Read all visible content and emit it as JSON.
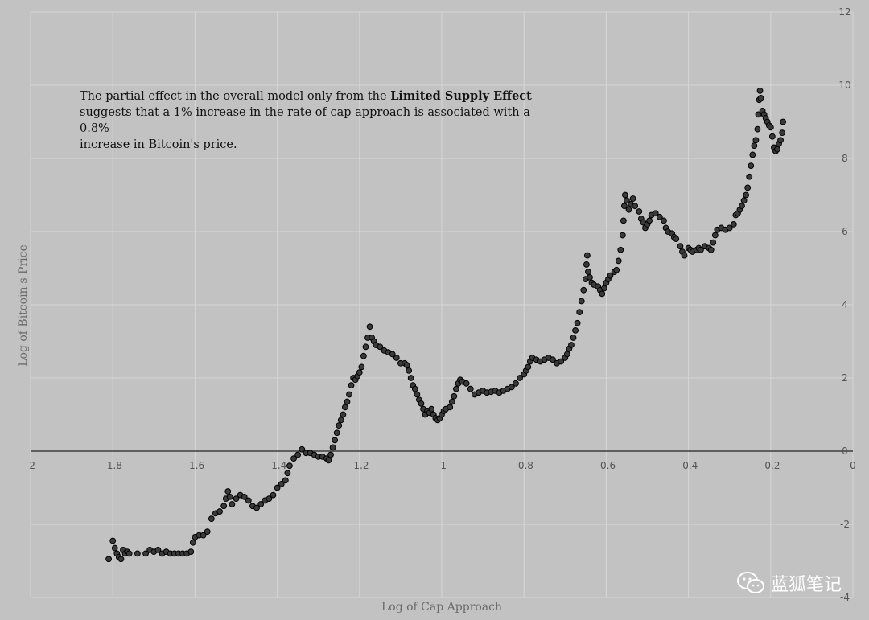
{
  "chart_data": {
    "type": "scatter",
    "title": "",
    "xlabel": "Log of Cap Approach",
    "ylabel": "Log  of  Bitcoin's Price",
    "xlim": [
      -2,
      0
    ],
    "ylim": [
      -4,
      12
    ],
    "x_ticks": [
      -2,
      -1.8,
      -1.6,
      -1.4,
      -1.2,
      -1,
      -0.8,
      -0.6,
      -0.4,
      -0.2,
      0
    ],
    "x_tick_labels": [
      "-2",
      "-1.8",
      "-1.6",
      "-1.4",
      "-1.2",
      "-1",
      "-0.8",
      "-0.6",
      "-0.4",
      "-0.2",
      "0"
    ],
    "y_ticks": [
      -4,
      -2,
      0,
      2,
      4,
      6,
      8,
      10,
      12
    ],
    "y_tick_labels": [
      "-4",
      "-2",
      "0",
      "2",
      "4",
      "6",
      "8",
      "10",
      "12"
    ],
    "grid": true,
    "marker_color": "#3a3a3a",
    "marker_edge": "#000000",
    "points": [
      [
        -1.81,
        -2.95
      ],
      [
        -1.8,
        -2.45
      ],
      [
        -1.795,
        -2.65
      ],
      [
        -1.79,
        -2.8
      ],
      [
        -1.785,
        -2.9
      ],
      [
        -1.78,
        -2.95
      ],
      [
        -1.775,
        -2.7
      ],
      [
        -1.77,
        -2.8
      ],
      [
        -1.765,
        -2.75
      ],
      [
        -1.76,
        -2.8
      ],
      [
        -1.74,
        -2.8
      ],
      [
        -1.72,
        -2.8
      ],
      [
        -1.71,
        -2.7
      ],
      [
        -1.7,
        -2.75
      ],
      [
        -1.69,
        -2.7
      ],
      [
        -1.68,
        -2.8
      ],
      [
        -1.67,
        -2.75
      ],
      [
        -1.66,
        -2.8
      ],
      [
        -1.65,
        -2.8
      ],
      [
        -1.64,
        -2.8
      ],
      [
        -1.63,
        -2.8
      ],
      [
        -1.62,
        -2.8
      ],
      [
        -1.61,
        -2.75
      ],
      [
        -1.605,
        -2.5
      ],
      [
        -1.6,
        -2.35
      ],
      [
        -1.59,
        -2.3
      ],
      [
        -1.58,
        -2.3
      ],
      [
        -1.57,
        -2.2
      ],
      [
        -1.56,
        -1.85
      ],
      [
        -1.55,
        -1.7
      ],
      [
        -1.54,
        -1.65
      ],
      [
        -1.53,
        -1.5
      ],
      [
        -1.525,
        -1.3
      ],
      [
        -1.52,
        -1.1
      ],
      [
        -1.515,
        -1.25
      ],
      [
        -1.51,
        -1.45
      ],
      [
        -1.5,
        -1.3
      ],
      [
        -1.49,
        -1.2
      ],
      [
        -1.48,
        -1.25
      ],
      [
        -1.47,
        -1.35
      ],
      [
        -1.46,
        -1.5
      ],
      [
        -1.45,
        -1.55
      ],
      [
        -1.44,
        -1.45
      ],
      [
        -1.43,
        -1.35
      ],
      [
        -1.42,
        -1.3
      ],
      [
        -1.41,
        -1.2
      ],
      [
        -1.4,
        -1.0
      ],
      [
        -1.39,
        -0.9
      ],
      [
        -1.38,
        -0.8
      ],
      [
        -1.375,
        -0.6
      ],
      [
        -1.37,
        -0.4
      ],
      [
        -1.36,
        -0.2
      ],
      [
        -1.35,
        -0.1
      ],
      [
        -1.34,
        0.05
      ],
      [
        -1.33,
        -0.05
      ],
      [
        -1.32,
        -0.05
      ],
      [
        -1.31,
        -0.1
      ],
      [
        -1.3,
        -0.15
      ],
      [
        -1.29,
        -0.15
      ],
      [
        -1.28,
        -0.2
      ],
      [
        -1.275,
        -0.25
      ],
      [
        -1.27,
        -0.1
      ],
      [
        -1.265,
        0.1
      ],
      [
        -1.26,
        0.3
      ],
      [
        -1.255,
        0.5
      ],
      [
        -1.25,
        0.7
      ],
      [
        -1.245,
        0.85
      ],
      [
        -1.24,
        1.0
      ],
      [
        -1.235,
        1.2
      ],
      [
        -1.23,
        1.35
      ],
      [
        -1.225,
        1.55
      ],
      [
        -1.22,
        1.8
      ],
      [
        -1.215,
        2.0
      ],
      [
        -1.21,
        1.95
      ],
      [
        -1.205,
        2.05
      ],
      [
        -1.2,
        2.15
      ],
      [
        -1.195,
        2.3
      ],
      [
        -1.19,
        2.6
      ],
      [
        -1.185,
        2.85
      ],
      [
        -1.18,
        3.1
      ],
      [
        -1.175,
        3.4
      ],
      [
        -1.17,
        3.1
      ],
      [
        -1.165,
        3.0
      ],
      [
        -1.16,
        2.9
      ],
      [
        -1.15,
        2.85
      ],
      [
        -1.14,
        2.75
      ],
      [
        -1.13,
        2.7
      ],
      [
        -1.12,
        2.65
      ],
      [
        -1.11,
        2.55
      ],
      [
        -1.1,
        2.4
      ],
      [
        -1.09,
        2.4
      ],
      [
        -1.085,
        2.35
      ],
      [
        -1.08,
        2.2
      ],
      [
        -1.075,
        2.0
      ],
      [
        -1.07,
        1.8
      ],
      [
        -1.065,
        1.7
      ],
      [
        -1.06,
        1.55
      ],
      [
        -1.055,
        1.4
      ],
      [
        -1.05,
        1.3
      ],
      [
        -1.045,
        1.15
      ],
      [
        -1.04,
        1.0
      ],
      [
        -1.035,
        1.1
      ],
      [
        -1.03,
        1.05
      ],
      [
        -1.025,
        1.15
      ],
      [
        -1.02,
        1.0
      ],
      [
        -1.015,
        0.9
      ],
      [
        -1.01,
        0.85
      ],
      [
        -1.005,
        0.9
      ],
      [
        -1.0,
        1.0
      ],
      [
        -0.995,
        1.1
      ],
      [
        -0.99,
        1.15
      ],
      [
        -0.98,
        1.2
      ],
      [
        -0.975,
        1.35
      ],
      [
        -0.97,
        1.5
      ],
      [
        -0.965,
        1.7
      ],
      [
        -0.96,
        1.85
      ],
      [
        -0.955,
        1.95
      ],
      [
        -0.95,
        1.9
      ],
      [
        -0.94,
        1.85
      ],
      [
        -0.93,
        1.7
      ],
      [
        -0.92,
        1.55
      ],
      [
        -0.91,
        1.6
      ],
      [
        -0.9,
        1.65
      ],
      [
        -0.89,
        1.6
      ],
      [
        -0.88,
        1.62
      ],
      [
        -0.87,
        1.65
      ],
      [
        -0.86,
        1.6
      ],
      [
        -0.85,
        1.65
      ],
      [
        -0.84,
        1.7
      ],
      [
        -0.83,
        1.75
      ],
      [
        -0.82,
        1.85
      ],
      [
        -0.81,
        2.0
      ],
      [
        -0.8,
        2.1
      ],
      [
        -0.795,
        2.2
      ],
      [
        -0.79,
        2.3
      ],
      [
        -0.785,
        2.45
      ],
      [
        -0.78,
        2.55
      ],
      [
        -0.77,
        2.5
      ],
      [
        -0.76,
        2.45
      ],
      [
        -0.75,
        2.5
      ],
      [
        -0.74,
        2.55
      ],
      [
        -0.73,
        2.5
      ],
      [
        -0.72,
        2.4
      ],
      [
        -0.71,
        2.45
      ],
      [
        -0.7,
        2.55
      ],
      [
        -0.695,
        2.65
      ],
      [
        -0.69,
        2.8
      ],
      [
        -0.685,
        2.9
      ],
      [
        -0.68,
        3.1
      ],
      [
        -0.675,
        3.3
      ],
      [
        -0.67,
        3.5
      ],
      [
        -0.665,
        3.8
      ],
      [
        -0.66,
        4.1
      ],
      [
        -0.655,
        4.4
      ],
      [
        -0.65,
        4.7
      ],
      [
        -0.648,
        5.1
      ],
      [
        -0.646,
        5.35
      ],
      [
        -0.644,
        4.9
      ],
      [
        -0.64,
        4.75
      ],
      [
        -0.635,
        4.6
      ],
      [
        -0.63,
        4.55
      ],
      [
        -0.62,
        4.5
      ],
      [
        -0.615,
        4.4
      ],
      [
        -0.61,
        4.3
      ],
      [
        -0.605,
        4.45
      ],
      [
        -0.6,
        4.6
      ],
      [
        -0.595,
        4.7
      ],
      [
        -0.59,
        4.8
      ],
      [
        -0.58,
        4.9
      ],
      [
        -0.575,
        4.95
      ],
      [
        -0.57,
        5.2
      ],
      [
        -0.565,
        5.5
      ],
      [
        -0.56,
        5.9
      ],
      [
        -0.558,
        6.3
      ],
      [
        -0.556,
        6.7
      ],
      [
        -0.554,
        7.0
      ],
      [
        -0.55,
        6.85
      ],
      [
        -0.545,
        6.6
      ],
      [
        -0.54,
        6.75
      ],
      [
        -0.535,
        6.9
      ],
      [
        -0.53,
        6.7
      ],
      [
        -0.52,
        6.55
      ],
      [
        -0.515,
        6.35
      ],
      [
        -0.51,
        6.25
      ],
      [
        -0.505,
        6.1
      ],
      [
        -0.5,
        6.2
      ],
      [
        -0.495,
        6.3
      ],
      [
        -0.49,
        6.45
      ],
      [
        -0.48,
        6.5
      ],
      [
        -0.47,
        6.4
      ],
      [
        -0.46,
        6.3
      ],
      [
        -0.455,
        6.1
      ],
      [
        -0.45,
        6.0
      ],
      [
        -0.44,
        5.95
      ],
      [
        -0.435,
        5.85
      ],
      [
        -0.43,
        5.8
      ],
      [
        -0.42,
        5.6
      ],
      [
        -0.415,
        5.45
      ],
      [
        -0.41,
        5.35
      ],
      [
        -0.4,
        5.55
      ],
      [
        -0.395,
        5.5
      ],
      [
        -0.39,
        5.45
      ],
      [
        -0.38,
        5.5
      ],
      [
        -0.375,
        5.55
      ],
      [
        -0.37,
        5.5
      ],
      [
        -0.36,
        5.6
      ],
      [
        -0.35,
        5.55
      ],
      [
        -0.345,
        5.5
      ],
      [
        -0.34,
        5.7
      ],
      [
        -0.335,
        5.9
      ],
      [
        -0.33,
        6.05
      ],
      [
        -0.32,
        6.1
      ],
      [
        -0.31,
        6.05
      ],
      [
        -0.3,
        6.1
      ],
      [
        -0.29,
        6.2
      ],
      [
        -0.285,
        6.45
      ],
      [
        -0.28,
        6.5
      ],
      [
        -0.275,
        6.6
      ],
      [
        -0.27,
        6.7
      ],
      [
        -0.265,
        6.85
      ],
      [
        -0.26,
        7.0
      ],
      [
        -0.256,
        7.2
      ],
      [
        -0.252,
        7.5
      ],
      [
        -0.248,
        7.8
      ],
      [
        -0.244,
        8.1
      ],
      [
        -0.24,
        8.35
      ],
      [
        -0.236,
        8.5
      ],
      [
        -0.232,
        8.8
      ],
      [
        -0.23,
        9.2
      ],
      [
        -0.228,
        9.6
      ],
      [
        -0.226,
        9.85
      ],
      [
        -0.224,
        9.65
      ],
      [
        -0.22,
        9.3
      ],
      [
        -0.216,
        9.2
      ],
      [
        -0.212,
        9.1
      ],
      [
        -0.208,
        9.0
      ],
      [
        -0.204,
        8.9
      ],
      [
        -0.2,
        8.85
      ],
      [
        -0.196,
        8.6
      ],
      [
        -0.192,
        8.3
      ],
      [
        -0.188,
        8.2
      ],
      [
        -0.184,
        8.25
      ],
      [
        -0.18,
        8.4
      ],
      [
        -0.176,
        8.5
      ],
      [
        -0.172,
        8.7
      ],
      [
        -0.17,
        9.0
      ]
    ]
  },
  "annotation": {
    "line1_prefix": "The partial effect in the overall model only from the ",
    "line1_bold": "Limited Supply Effect",
    "line2": "suggests that a 1% increase in the rate of cap approach is associated with a 0.8%",
    "line3": "increase in Bitcoin's price."
  },
  "watermark": {
    "text": "蓝狐笔记",
    "icon": "wechat-icon"
  },
  "colors": {
    "background": "#c2c2c2",
    "grid": "#d6d6d6",
    "zero_line": "#3c3c3c",
    "watermark_text": "#ffffff"
  }
}
